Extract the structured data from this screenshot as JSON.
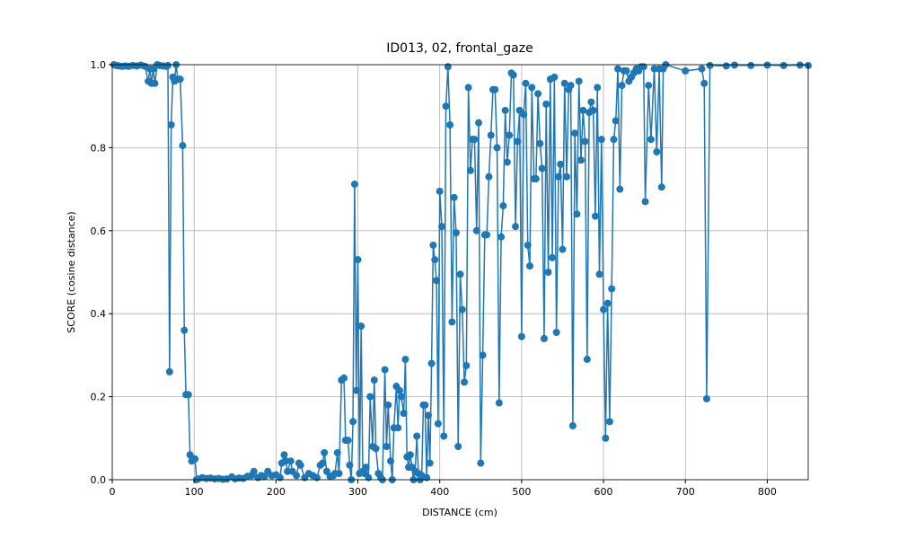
{
  "chart_data": {
    "type": "line",
    "title": "ID013, 02, frontal_gaze",
    "x_label": "DISTANCE (cm)",
    "y_label": "SCORE (cosine distance)",
    "xlim": [
      0,
      850
    ],
    "ylim": [
      0,
      1
    ],
    "xticks": [
      0,
      100,
      200,
      300,
      400,
      500,
      600,
      700,
      800
    ],
    "yticks": [
      {
        "value": 0,
        "label": "0.0"
      },
      0.2,
      0.4,
      0.6,
      0.8,
      {
        "value": 1,
        "label": "1.0"
      }
    ],
    "grid": true,
    "markers": true,
    "series": [
      {
        "color": "#1f77b4",
        "x": [
          2,
          5,
          8,
          12,
          16,
          20,
          25,
          30,
          35,
          40,
          44,
          46,
          48,
          50,
          52,
          55,
          58,
          62,
          66,
          68,
          70,
          72,
          74,
          76,
          78,
          80,
          83,
          86,
          88,
          90,
          93,
          95,
          97,
          99,
          101,
          103,
          105,
          110,
          115,
          120,
          125,
          130,
          135,
          140,
          146,
          150,
          155,
          160,
          165,
          170,
          173,
          178,
          182,
          186,
          190,
          195,
          200,
          205,
          207,
          210,
          212,
          214,
          218,
          220,
          225,
          228,
          230,
          235,
          240,
          245,
          250,
          254,
          257,
          259,
          262,
          266,
          270,
          272,
          275,
          277,
          280,
          283,
          285,
          288,
          290,
          292,
          294,
          296,
          298,
          300,
          302,
          304,
          306,
          308,
          310,
          313,
          315,
          318,
          320,
          322,
          325,
          328,
          330,
          333,
          335,
          337,
          340,
          342,
          344,
          347,
          349,
          351,
          353,
          356,
          358,
          360,
          362,
          364,
          366,
          368,
          370,
          372,
          374,
          376,
          378,
          380,
          382,
          384,
          386,
          388,
          390,
          392,
          394,
          396,
          398,
          400,
          402.5,
          405,
          407.5,
          410,
          412.5,
          415,
          417.5,
          420,
          422.5,
          425,
          427.5,
          430,
          432.5,
          435,
          437.5,
          440,
          442.5,
          445,
          447.5,
          450,
          452.5,
          455,
          457.5,
          460,
          462.5,
          465,
          467.5,
          470,
          472.5,
          475,
          477.5,
          480,
          482.5,
          485,
          487.5,
          490,
          492.5,
          495,
          497.5,
          500,
          502.5,
          505,
          507.5,
          510,
          512.5,
          515,
          517.5,
          520,
          522.5,
          525,
          527.5,
          530,
          532.5,
          535,
          537.5,
          540,
          542.5,
          545,
          547.5,
          550,
          552.5,
          555,
          557.5,
          560,
          562.5,
          565,
          567.5,
          570,
          572.5,
          575,
          577.5,
          580,
          582.5,
          585,
          587.5,
          590,
          592.5,
          595,
          597.5,
          600,
          602.5,
          605,
          607.5,
          610,
          612.5,
          615,
          617.5,
          620,
          622.5,
          625,
          628,
          631,
          634,
          637,
          640,
          643,
          646,
          649,
          651,
          655,
          658,
          662,
          665,
          668,
          671,
          673,
          676,
          700,
          720,
          723,
          726,
          730,
          750,
          760,
          780,
          800,
          820,
          840,
          850
        ],
        "values": [
          1,
          0.998,
          0.997,
          0.996,
          0.997,
          0.996,
          0.998,
          0.997,
          0.999,
          0.996,
          0.96,
          0.99,
          0.955,
          0.99,
          0.955,
          1,
          0.998,
          0.997,
          0.996,
          0.998,
          0.26,
          0.855,
          0.97,
          0.96,
          1,
          0.965,
          0.965,
          0.805,
          0.36,
          0.205,
          0.205,
          0.06,
          0.045,
          0.05,
          0.05,
          0,
          0.002,
          0.005,
          0.003,
          0.004,
          0.002,
          0.003,
          0.001,
          0.002,
          0.007,
          0.002,
          0.004,
          0.003,
          0.008,
          0.01,
          0.02,
          0.005,
          0.01,
          0.008,
          0.02,
          0.01,
          0.012,
          0.005,
          0.04,
          0.06,
          0.045,
          0.02,
          0.045,
          0.02,
          0.01,
          0.04,
          0.035,
          0.005,
          0.015,
          0.01,
          0.005,
          0.035,
          0.04,
          0.065,
          0.02,
          0.008,
          0.01,
          0.015,
          0.065,
          0.015,
          0.24,
          0.245,
          0.095,
          0.095,
          0.035,
          0,
          0.14,
          0.712,
          0.215,
          0.53,
          0.015,
          0.37,
          0.02,
          0.015,
          0.03,
          0.005,
          0.2,
          0.08,
          0.24,
          0.075,
          0.015,
          0.005,
          0,
          0.265,
          0.08,
          0.18,
          0.045,
          0,
          0.125,
          0.225,
          0.125,
          0.215,
          0.2,
          0.16,
          0.29,
          0.055,
          0.03,
          0.06,
          0.03,
          0,
          0.02,
          0.105,
          0.015,
          0,
          0.01,
          0.18,
          0.18,
          0.005,
          0.155,
          0.04,
          0.28,
          0.565,
          0.53,
          0.48,
          0.135,
          0.695,
          0.61,
          0.105,
          0.9,
          0.995,
          0.855,
          0.38,
          0.68,
          0.595,
          0.08,
          0.495,
          0.41,
          0.235,
          0.275,
          0.945,
          0.745,
          0.82,
          0.82,
          0.6,
          0.86,
          0.04,
          0.3,
          0.59,
          0.59,
          0.73,
          0.83,
          0.94,
          0.94,
          0.8,
          0.185,
          0.585,
          0.66,
          0.89,
          0.765,
          0.83,
          0.98,
          0.975,
          0.61,
          0.815,
          0.89,
          0.345,
          0.88,
          0.955,
          0.565,
          0.515,
          0.945,
          0.725,
          0.725,
          0.93,
          0.81,
          0.75,
          0.34,
          0.905,
          0.5,
          0.965,
          0.535,
          0.97,
          0.355,
          0.73,
          0.76,
          0.555,
          0.955,
          0.73,
          0.94,
          0.95,
          0.13,
          0.835,
          0.64,
          0.96,
          0.77,
          0.89,
          0.815,
          0.29,
          0.885,
          0.91,
          0.89,
          0.635,
          0.945,
          0.495,
          0.82,
          0.41,
          0.1,
          0.425,
          0.14,
          0.46,
          0.82,
          0.865,
          0.99,
          0.7,
          0.95,
          0.985,
          0.985,
          0.96,
          0.97,
          0.98,
          0.99,
          0.985,
          0.995,
          0.995,
          0.67,
          0.95,
          0.82,
          0.99,
          0.79,
          0.99,
          0.705,
          0.99,
          1,
          0.985,
          0.99,
          0.955,
          0.195,
          0.998,
          0.997,
          0.999,
          0.998,
          0.999,
          0.998,
          0.999,
          0.998
        ]
      }
    ]
  }
}
